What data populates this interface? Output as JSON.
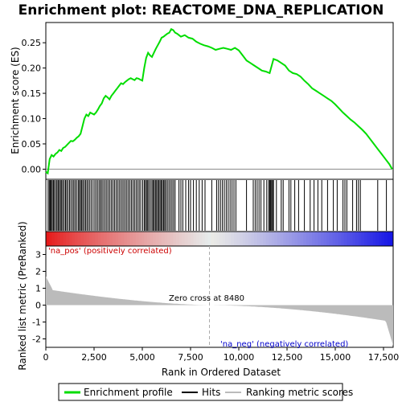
{
  "chart_data": {
    "type": "line",
    "title": "Enrichment plot: REACTOME_DNA_REPLICATION",
    "xlabel": "Rank in Ordered Dataset",
    "ylabel_top": "Enrichment score (ES)",
    "ylabel_bottom": "Ranked list metric (PreRanked)",
    "xlim": [
      0,
      18000
    ],
    "ylim_es": [
      -0.02,
      0.29
    ],
    "ylim_metric": [
      -2.5,
      3.5
    ],
    "x_ticks": [
      {
        "value": 0,
        "label": "0"
      },
      {
        "value": 2500,
        "label": "2,500"
      },
      {
        "value": 5000,
        "label": "5,000"
      },
      {
        "value": 7500,
        "label": "7,500"
      },
      {
        "value": 10000,
        "label": "10,000"
      },
      {
        "value": 12500,
        "label": "12,500"
      },
      {
        "value": 15000,
        "label": "15,000"
      },
      {
        "value": 17500,
        "label": "17,500"
      }
    ],
    "es_ticks": [
      {
        "value": 0.0,
        "label": "0.00"
      },
      {
        "value": 0.05,
        "label": "0.05"
      },
      {
        "value": 0.1,
        "label": "0.10"
      },
      {
        "value": 0.15,
        "label": "0.15"
      },
      {
        "value": 0.2,
        "label": "0.20"
      },
      {
        "value": 0.25,
        "label": "0.25"
      }
    ],
    "metric_ticks": [
      {
        "value": 3,
        "label": "3"
      },
      {
        "value": 2,
        "label": "2"
      },
      {
        "value": 1,
        "label": "1"
      },
      {
        "value": 0,
        "label": "0"
      },
      {
        "value": -1,
        "label": "-1"
      },
      {
        "value": -2,
        "label": "-2"
      }
    ],
    "enrichment_profile": {
      "x": [
        0,
        100,
        200,
        300,
        400,
        500,
        600,
        700,
        800,
        900,
        1000,
        1100,
        1200,
        1300,
        1400,
        1500,
        1600,
        1700,
        1800,
        1900,
        2000,
        2100,
        2200,
        2300,
        2400,
        2500,
        2600,
        2700,
        2800,
        2900,
        3000,
        3100,
        3200,
        3300,
        3400,
        3500,
        3600,
        3700,
        3800,
        3900,
        4000,
        4100,
        4200,
        4300,
        4400,
        4500,
        4600,
        4700,
        4800,
        4900,
        5000,
        5100,
        5200,
        5300,
        5400,
        5500,
        5600,
        5700,
        5800,
        5900,
        6000,
        6100,
        6200,
        6300,
        6400,
        6500,
        6600,
        6700,
        6800,
        6900,
        7000,
        7200,
        7400,
        7600,
        7800,
        8000,
        8200,
        8400,
        8600,
        8800,
        9000,
        9200,
        9400,
        9600,
        9800,
        10000,
        10200,
        10400,
        10600,
        10800,
        11000,
        11200,
        11400,
        11600,
        11800,
        12000,
        12200,
        12400,
        12600,
        12800,
        13000,
        13200,
        13400,
        13600,
        13800,
        14000,
        14200,
        14400,
        14600,
        14800,
        15000,
        15200,
        15400,
        15600,
        15800,
        16000,
        16200,
        16400,
        16600,
        16800,
        17000,
        17200,
        17400,
        17600,
        17800,
        17950
      ],
      "es": [
        -0.005,
        -0.008,
        0.02,
        0.028,
        0.025,
        0.03,
        0.033,
        0.038,
        0.036,
        0.042,
        0.044,
        0.048,
        0.052,
        0.056,
        0.055,
        0.058,
        0.062,
        0.065,
        0.07,
        0.085,
        0.1,
        0.108,
        0.105,
        0.112,
        0.11,
        0.108,
        0.112,
        0.118,
        0.125,
        0.13,
        0.14,
        0.145,
        0.142,
        0.138,
        0.145,
        0.15,
        0.155,
        0.16,
        0.165,
        0.17,
        0.168,
        0.172,
        0.175,
        0.178,
        0.18,
        0.178,
        0.176,
        0.18,
        0.179,
        0.177,
        0.175,
        0.2,
        0.22,
        0.23,
        0.225,
        0.222,
        0.23,
        0.238,
        0.245,
        0.252,
        0.26,
        0.262,
        0.265,
        0.268,
        0.27,
        0.277,
        0.275,
        0.27,
        0.268,
        0.265,
        0.262,
        0.265,
        0.26,
        0.258,
        0.252,
        0.248,
        0.245,
        0.243,
        0.24,
        0.236,
        0.238,
        0.24,
        0.238,
        0.236,
        0.24,
        0.235,
        0.225,
        0.215,
        0.21,
        0.205,
        0.2,
        0.195,
        0.193,
        0.19,
        0.218,
        0.215,
        0.21,
        0.205,
        0.195,
        0.19,
        0.188,
        0.183,
        0.175,
        0.168,
        0.16,
        0.155,
        0.15,
        0.145,
        0.14,
        0.135,
        0.128,
        0.12,
        0.112,
        0.105,
        0.098,
        0.092,
        0.085,
        0.078,
        0.07,
        0.06,
        0.05,
        0.04,
        0.03,
        0.02,
        0.01,
        0.0
      ]
    },
    "hits": [
      120,
      180,
      230,
      280,
      330,
      390,
      440,
      520,
      580,
      640,
      700,
      760,
      820,
      880,
      950,
      1020,
      1080,
      1150,
      1230,
      1300,
      1380,
      1450,
      1520,
      1600,
      1680,
      1740,
      1800,
      1860,
      1920,
      1990,
      2060,
      2130,
      2200,
      2280,
      2360,
      2450,
      2540,
      2620,
      2700,
      2780,
      2850,
      2920,
      3000,
      3080,
      3160,
      3240,
      3320,
      3400,
      3480,
      3560,
      3640,
      3720,
      3800,
      3880,
      3960,
      4040,
      4120,
      4200,
      4280,
      4360,
      4440,
      4520,
      4600,
      4680,
      4760,
      4840,
      4920,
      5020,
      5100,
      5160,
      5220,
      5280,
      5340,
      5420,
      5500,
      5560,
      5620,
      5680,
      5740,
      5800,
      5860,
      5920,
      5980,
      6040,
      6100,
      6160,
      6220,
      6300,
      6380,
      6460,
      6540,
      6620,
      6700,
      6900,
      7000,
      7100,
      7250,
      7400,
      7500,
      7650,
      7800,
      7950,
      8100,
      8250,
      8600,
      8850,
      8950,
      9050,
      9150,
      9250,
      9350,
      9450,
      9550,
      9650,
      9750,
      9850,
      10400,
      10750,
      10850,
      10950,
      11050,
      11150,
      11300,
      11450,
      11550,
      11600,
      11650,
      11700,
      11750,
      11800,
      11950,
      12200,
      12300,
      12600,
      12700,
      12900,
      13100,
      13400,
      13700,
      13900,
      14100,
      14300,
      14600,
      14900,
      15100,
      15400,
      15500,
      15600,
      15900,
      16100,
      16200,
      16300,
      17200,
      17650
    ],
    "zero_cross_rank": 8480,
    "annotations": {
      "pos_label": "'na_pos' (positively correlated)",
      "neg_label": "'na_neg' (negatively correlated)",
      "zero_label": "Zero cross at 8480"
    },
    "legend": {
      "placement": "bottom",
      "items": [
        {
          "name": "Enrichment profile",
          "color": "#00dd00"
        },
        {
          "name": "Hits",
          "color": "#000000"
        },
        {
          "name": "Ranking metric scores",
          "color": "#bbbbbb"
        }
      ]
    },
    "colors": {
      "profile": "#00dd00",
      "hits": "#000000",
      "metric": "#bbbbbb",
      "zero_line": "#aaaaaa"
    }
  }
}
